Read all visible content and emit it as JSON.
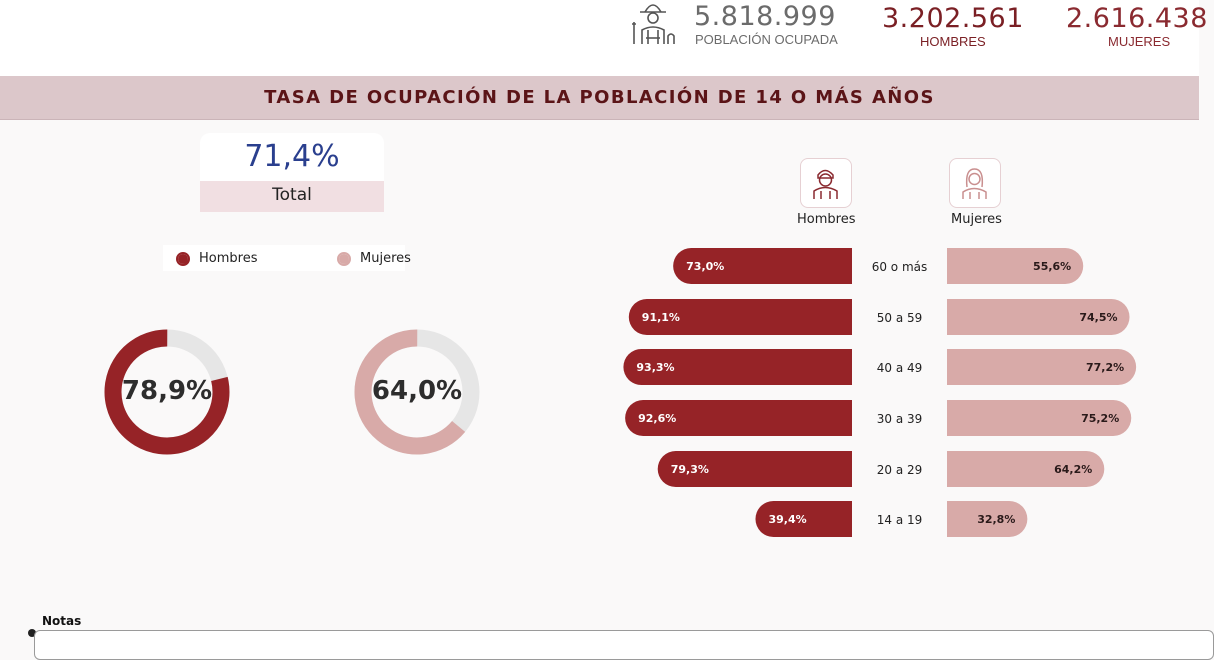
{
  "kpis": {
    "poblacion_ocupada": {
      "value": "5.818.999",
      "label": "POBLACIÓN OCUPADA"
    },
    "hombres": {
      "value": "3.202.561",
      "label": "HOMBRES"
    },
    "mujeres": {
      "value": "2.616.438",
      "label": "MUJERES"
    },
    "icon": "farmer-worker-icon"
  },
  "banner": {
    "title": "TASA DE OCUPACIÓN DE LA POBLACIÓN DE 14 O MÁS AÑOS"
  },
  "total": {
    "value": "71,4%",
    "label": "Total"
  },
  "legend": {
    "hombres": "Hombres",
    "mujeres": "Mujeres"
  },
  "colors": {
    "hombres": "#962327",
    "mujeres": "#d8aaa8",
    "track": "#e6e6e6",
    "total_value": "#2a3f8e",
    "banner": "#dcc7ca"
  },
  "column_heads": {
    "hombres": "Hombres",
    "mujeres": "Mujeres",
    "hombres_icon": "man-avatar-icon",
    "mujeres_icon": "woman-avatar-icon"
  },
  "notes": {
    "label": "Notas"
  },
  "chart_data": [
    {
      "type": "pie",
      "subtype": "donut",
      "series": [
        {
          "name": "Hombres",
          "value": 78.9,
          "label": "78,9%"
        },
        {
          "name": "Mujeres",
          "value": 64.0,
          "label": "64,0%"
        }
      ]
    },
    {
      "type": "bar",
      "orientation": "horizontal-butterfly",
      "categories": [
        "60 o más",
        "50 a 59",
        "40 a 49",
        "30 a 39",
        "20 a 29",
        "14 a 19"
      ],
      "series": [
        {
          "name": "Hombres",
          "values": [
            73.0,
            91.1,
            93.3,
            92.6,
            79.3,
            39.4
          ],
          "labels": [
            "73,0%",
            "91,1%",
            "93,3%",
            "92,6%",
            "79,3%",
            "39,4%"
          ]
        },
        {
          "name": "Mujeres",
          "values": [
            55.6,
            74.5,
            77.2,
            75.2,
            64.2,
            32.8
          ],
          "labels": [
            "55,6%",
            "74,5%",
            "77,2%",
            "75,2%",
            "64,2%",
            "32,8%"
          ]
        }
      ]
    }
  ]
}
